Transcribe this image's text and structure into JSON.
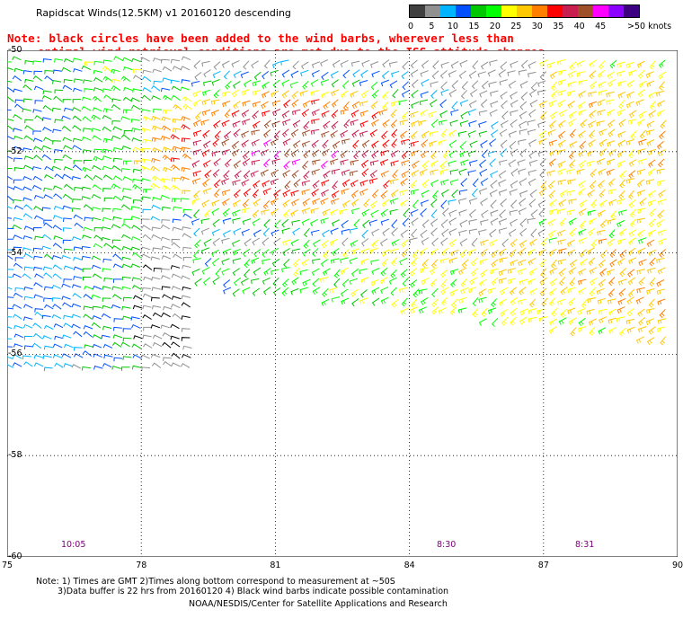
{
  "title": "Rapidscat Winds(12.5KM) v1 20160120 descending",
  "notice": {
    "line1": "Note: black circles have been added to the wind barbs, wherever less than",
    "line2": "optimal wind retrieval conditions are met due to the ISS attitude changes."
  },
  "legend": {
    "labels": [
      "0",
      "5",
      "10",
      "15",
      "20",
      "25",
      "30",
      "35",
      "40",
      "45",
      ">50 knots"
    ],
    "colors": [
      "#404040",
      "#909090",
      "#00b4ff",
      "#0050ff",
      "#00c800",
      "#00ff00",
      "#ffff00",
      "#ffc800",
      "#ff8000",
      "#ff0000",
      "#c81e50",
      "#a05028",
      "#ff00ff",
      "#8c00ff",
      "#3c0080"
    ]
  },
  "map": {
    "lon_ticks": [
      "75",
      "78",
      "81",
      "84",
      "87",
      "90"
    ],
    "lat_ticks": [
      "-50",
      "-52",
      "-54",
      "-56",
      "-58",
      "-60"
    ],
    "pass_times": [
      "10:05",
      "8:30",
      "8:31"
    ]
  },
  "footer": {
    "line1": "Note: 1) Times are GMT 2)Times along bottom correspond to measurement at ~50S",
    "line2": "3)Data buffer is 22 hrs from 20160120 4) Black wind barbs indicate possible contamination",
    "credit": "NOAA/NESDIS/Center for Satellite Applications and Research"
  }
}
